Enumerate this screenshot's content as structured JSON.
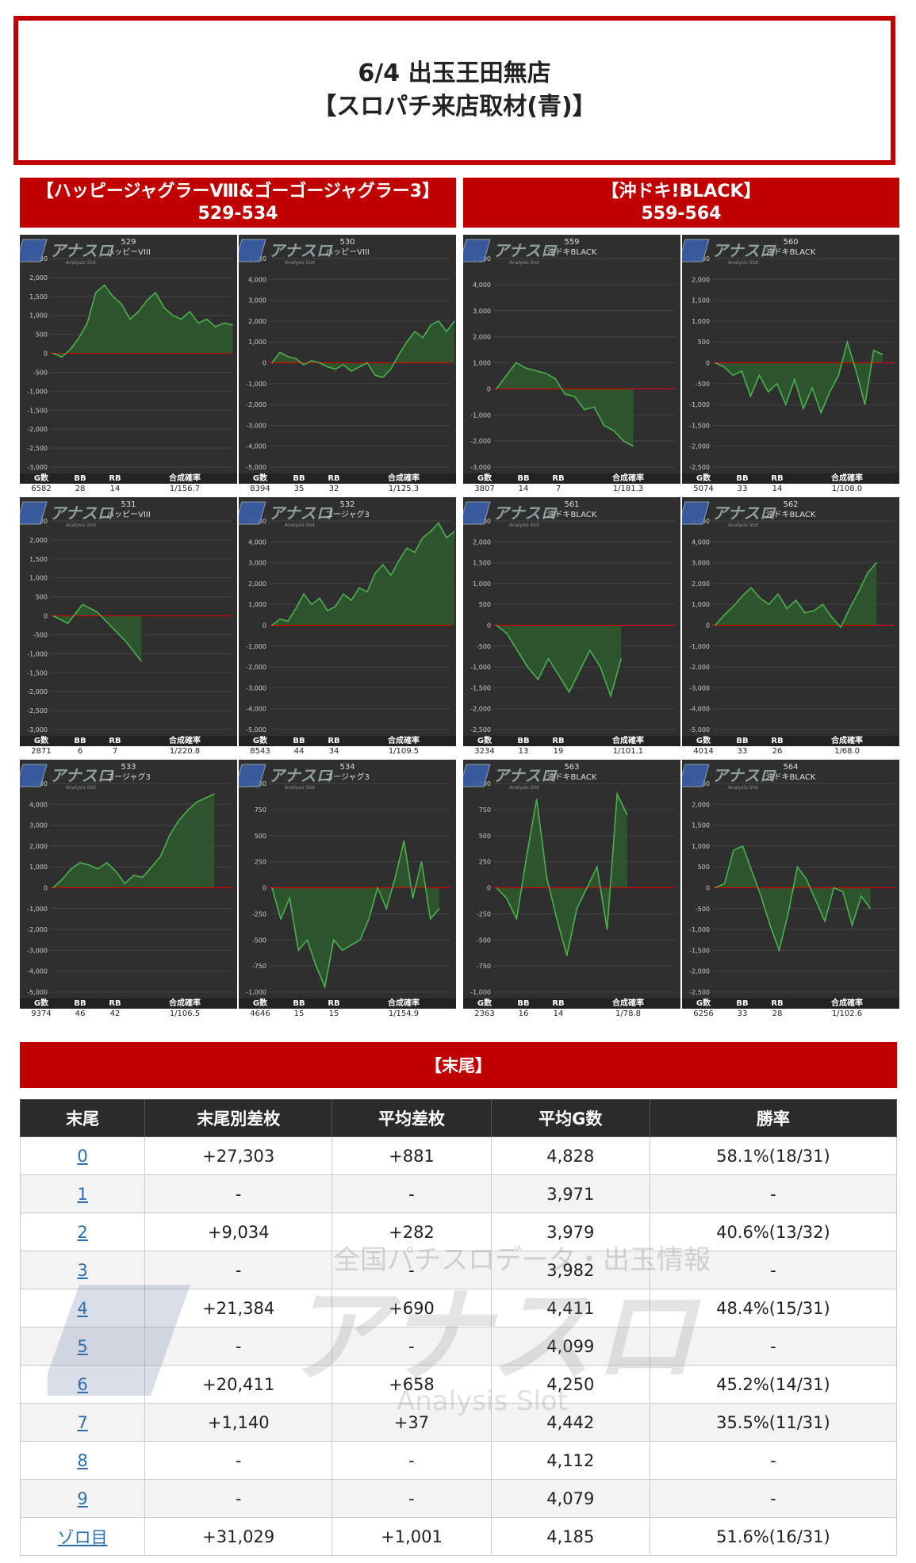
{
  "header": {
    "line1": "6/4 出玉王田無店",
    "line2": "【スロパチ来店取材(青)】"
  },
  "groups": [
    {
      "title": "【ハッピージャグラーⅧ&ゴーゴージャグラー3】",
      "range": "529-534"
    },
    {
      "title": "【沖ドキ!BLACK】",
      "range": "559-564"
    }
  ],
  "stat_headers": {
    "g": "G数",
    "bb": "BB",
    "rb": "RB",
    "rate": "合成確率"
  },
  "watermark": {
    "brand": "アナスロ",
    "sub": "Analysis Slot",
    "tagline": "全国パチスロデータ・出玉情報"
  },
  "colors": {
    "accent": "#c00000",
    "line": "#4caf50",
    "fill": "#2e5b2e",
    "zero": "#d00000"
  },
  "machines": [
    {
      "no": "529",
      "name": "ハッピーVIII",
      "g": "6582",
      "bb": "28",
      "rb": "14",
      "rate": "1/156.7",
      "ylim": [
        -3000,
        2500
      ],
      "yticks": [
        -3000,
        -2500,
        -2000,
        -1500,
        -1000,
        -500,
        0,
        500,
        1000,
        1500,
        2000,
        2500
      ],
      "series": [
        0,
        -100,
        100,
        400,
        800,
        1600,
        1800,
        1500,
        1300,
        900,
        1100,
        1400,
        1600,
        1200,
        1000,
        900,
        1100,
        800,
        900,
        700,
        800,
        750
      ]
    },
    {
      "no": "530",
      "name": "ハッピーVIII",
      "g": "8394",
      "bb": "35",
      "rb": "32",
      "rate": "1/125.3",
      "ylim": [
        -5000,
        5000
      ],
      "yticks": [
        -5000,
        -4000,
        -3000,
        -2000,
        -1000,
        0,
        1000,
        2000,
        3000,
        4000,
        5000
      ],
      "series": [
        0,
        500,
        300,
        200,
        -100,
        100,
        0,
        -200,
        -300,
        -100,
        -400,
        -200,
        0,
        -600,
        -700,
        -300,
        400,
        1000,
        1500,
        1200,
        1800,
        2000,
        1500,
        2000
      ]
    },
    {
      "no": "559",
      "name": "沖ドキBLACK",
      "g": "3807",
      "bb": "14",
      "rb": "7",
      "rate": "1/181.3",
      "ylim": [
        -3000,
        5000
      ],
      "yticks": [
        -3000,
        -2000,
        -1000,
        0,
        1000,
        2000,
        3000,
        4000,
        5000
      ],
      "series": [
        0,
        500,
        1000,
        800,
        700,
        600,
        400,
        -200,
        -300,
        -800,
        -700,
        -1400,
        -1600,
        -2000,
        -2200
      ]
    },
    {
      "no": "560",
      "name": "沖ドキBLACK",
      "g": "5074",
      "bb": "33",
      "rb": "14",
      "rate": "1/108.0",
      "ylim": [
        -2500,
        2500
      ],
      "yticks": [
        -2500,
        -2000,
        -1500,
        -1000,
        -500,
        0,
        500,
        1000,
        1500,
        2000,
        2500
      ],
      "series": [
        0,
        -100,
        -300,
        -200,
        -800,
        -300,
        -700,
        -500,
        -1000,
        -400,
        -1100,
        -600,
        -1200,
        -700,
        -300,
        500,
        -200,
        -1000,
        300,
        200
      ]
    },
    {
      "no": "531",
      "name": "ハッピーVIII",
      "g": "2871",
      "bb": "6",
      "rb": "7",
      "rate": "1/220.8",
      "ylim": [
        -3000,
        2500
      ],
      "yticks": [
        -3000,
        -2500,
        -2000,
        -1500,
        -1000,
        -500,
        0,
        500,
        1000,
        1500,
        2000,
        2500
      ],
      "series": [
        0,
        -200,
        300,
        100,
        -300,
        -700,
        -1200
      ]
    },
    {
      "no": "532",
      "name": "ゴージャグ3",
      "g": "8543",
      "bb": "44",
      "rb": "34",
      "rate": "1/109.5",
      "ylim": [
        -5000,
        5000
      ],
      "yticks": [
        -5000,
        -4000,
        -3000,
        -2000,
        -1000,
        0,
        1000,
        2000,
        3000,
        4000,
        5000
      ],
      "series": [
        0,
        300,
        200,
        800,
        1500,
        1000,
        1300,
        700,
        900,
        1500,
        1200,
        1800,
        1600,
        2500,
        2900,
        2400,
        3100,
        3700,
        3500,
        4200,
        4500,
        4900,
        4200,
        4500
      ]
    },
    {
      "no": "561",
      "name": "沖ドキBLACK",
      "g": "3234",
      "bb": "13",
      "rb": "19",
      "rate": "1/101.1",
      "ylim": [
        -2500,
        2500
      ],
      "yticks": [
        -2500,
        -2000,
        -1500,
        -1000,
        -500,
        0,
        500,
        1000,
        1500,
        2000,
        2500
      ],
      "series": [
        0,
        -200,
        -600,
        -1000,
        -1300,
        -800,
        -1200,
        -1600,
        -1100,
        -600,
        -1000,
        -1700,
        -800
      ]
    },
    {
      "no": "562",
      "name": "沖ドキBLACK",
      "g": "4014",
      "bb": "33",
      "rb": "26",
      "rate": "1/68.0",
      "ylim": [
        -5000,
        5000
      ],
      "yticks": [
        -5000,
        -4000,
        -3000,
        -2000,
        -1000,
        0,
        1000,
        2000,
        3000,
        4000,
        5000
      ],
      "series": [
        0,
        500,
        900,
        1400,
        1800,
        1300,
        1000,
        1500,
        800,
        1200,
        600,
        700,
        1000,
        400,
        -100,
        800,
        1600,
        2500,
        3000
      ]
    },
    {
      "no": "533",
      "name": "ゴージャグ3",
      "g": "9374",
      "bb": "46",
      "rb": "42",
      "rate": "1/106.5",
      "ylim": [
        -5000,
        5000
      ],
      "yticks": [
        -5000,
        -4000,
        -3000,
        -2000,
        -1000,
        0,
        1000,
        2000,
        3000,
        4000,
        5000
      ],
      "series": [
        0,
        400,
        900,
        1200,
        1100,
        900,
        1200,
        800,
        200,
        600,
        500,
        1000,
        1500,
        2500,
        3200,
        3700,
        4100,
        4300,
        4500
      ]
    },
    {
      "no": "534",
      "name": "ゴージャグ3",
      "g": "4646",
      "bb": "15",
      "rb": "15",
      "rate": "1/154.9",
      "ylim": [
        -1000,
        1000
      ],
      "yticks": [
        -1000,
        -750,
        -500,
        -250,
        0,
        250,
        500,
        750,
        1000
      ],
      "series": [
        0,
        -300,
        -100,
        -600,
        -500,
        -750,
        -950,
        -500,
        -600,
        -550,
        -500,
        -300,
        0,
        -200,
        100,
        450,
        -100,
        250,
        -300,
        -200
      ]
    },
    {
      "no": "563",
      "name": "沖ドキBLACK",
      "g": "2363",
      "bb": "16",
      "rb": "14",
      "rate": "1/78.8",
      "ylim": [
        -1000,
        1000
      ],
      "yticks": [
        -1000,
        -750,
        -500,
        -250,
        0,
        250,
        500,
        750,
        1000
      ],
      "series": [
        0,
        -100,
        -300,
        300,
        850,
        100,
        -300,
        -650,
        -200,
        0,
        200,
        -400,
        900,
        700
      ]
    },
    {
      "no": "564",
      "name": "沖ドキBLACK",
      "g": "6256",
      "bb": "33",
      "rb": "28",
      "rate": "1/102.6",
      "ylim": [
        -2500,
        2500
      ],
      "yticks": [
        -2500,
        -2000,
        -1500,
        -1000,
        -500,
        0,
        500,
        1000,
        1500,
        2000,
        2500
      ],
      "series": [
        0,
        100,
        900,
        1000,
        400,
        -200,
        -900,
        -1500,
        -600,
        500,
        200,
        -300,
        -800,
        0,
        -100,
        -900,
        -200,
        -500
      ]
    }
  ],
  "summary": {
    "section_title": "【末尾】",
    "columns": [
      "末尾",
      "末尾別差枚",
      "平均差枚",
      "平均G数",
      "勝率"
    ],
    "rows": [
      [
        "0",
        "+27,303",
        "+881",
        "4,828",
        "58.1%(18/31)"
      ],
      [
        "1",
        "-",
        "-",
        "3,971",
        "-"
      ],
      [
        "2",
        "+9,034",
        "+282",
        "3,979",
        "40.6%(13/32)"
      ],
      [
        "3",
        "-",
        "-",
        "3,982",
        "-"
      ],
      [
        "4",
        "+21,384",
        "+690",
        "4,411",
        "48.4%(15/31)"
      ],
      [
        "5",
        "-",
        "-",
        "4,099",
        "-"
      ],
      [
        "6",
        "+20,411",
        "+658",
        "4,250",
        "45.2%(14/31)"
      ],
      [
        "7",
        "+1,140",
        "+37",
        "4,442",
        "35.5%(11/31)"
      ],
      [
        "8",
        "-",
        "-",
        "4,112",
        "-"
      ],
      [
        "9",
        "-",
        "-",
        "4,079",
        "-"
      ],
      [
        "ゾロ目",
        "+31,029",
        "+1,001",
        "4,185",
        "51.6%(16/31)"
      ]
    ]
  }
}
